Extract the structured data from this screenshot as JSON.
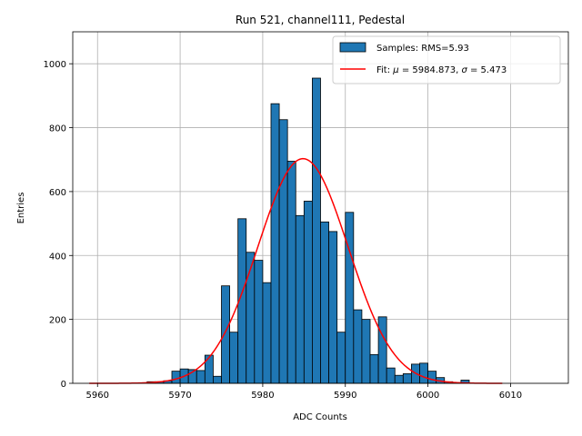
{
  "chart_data": {
    "type": "bar",
    "title": "Run 521, channel111, Pedestal",
    "xlabel": "ADC Counts",
    "ylabel": "Entries",
    "xlim": [
      5957,
      6017
    ],
    "ylim": [
      0,
      1100
    ],
    "xticks": [
      5960,
      5970,
      5980,
      5990,
      6000,
      6010
    ],
    "yticks": [
      0,
      200,
      400,
      600,
      800,
      1000
    ],
    "grid": true,
    "legend_position": "top-right",
    "colors": {
      "bars": "#1f77b4",
      "bar_edge": "#000000",
      "fit": "#ff0000",
      "grid": "#b0b0b0"
    },
    "histogram": {
      "name": "Samples: RMS=5.93",
      "bin_edges": [
        5966,
        5967,
        5968,
        5969,
        5970,
        5971,
        5972,
        5973,
        5974,
        5975,
        5976,
        5977,
        5978,
        5979,
        5980,
        5981,
        5982,
        5983,
        5984,
        5985,
        5986,
        5987,
        5988,
        5989,
        5990,
        5991,
        5992,
        5993,
        5994,
        5995,
        5996,
        5997,
        5998,
        5999,
        6000,
        6001,
        6002,
        6003,
        6004,
        6005,
        6006
      ],
      "counts": [
        5,
        5,
        8,
        38,
        45,
        43,
        40,
        88,
        22,
        305,
        160,
        515,
        410,
        385,
        315,
        875,
        825,
        695,
        525,
        570,
        955,
        505,
        475,
        160,
        535,
        230,
        200,
        90,
        208,
        48,
        25,
        30,
        60,
        63,
        38,
        18,
        5,
        2,
        10,
        0
      ]
    },
    "fit": {
      "name_prefix": "Fit: ",
      "name_mu": "μ",
      "name_mid": " = 5984.873, ",
      "name_sigma": "σ",
      "name_suffix": " = 5.473",
      "mu": 5984.873,
      "sigma": 5.473,
      "amplitude": 703,
      "x_range": [
        5959,
        6009
      ]
    }
  }
}
